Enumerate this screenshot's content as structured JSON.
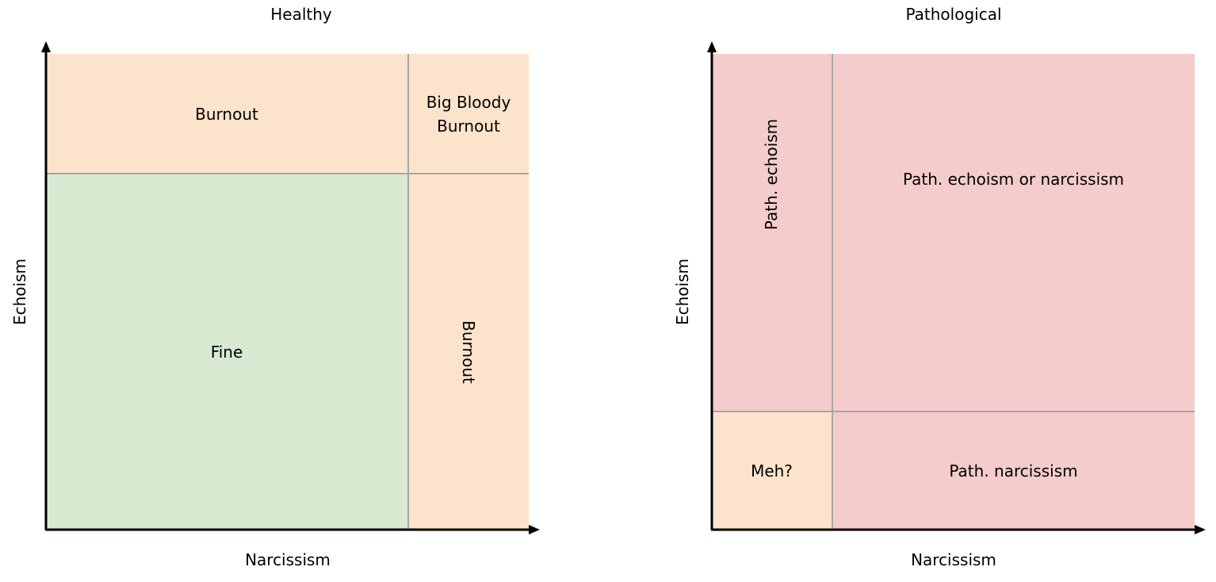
{
  "left_panel": {
    "title": "Healthy",
    "xlabel": "Narcissism",
    "ylabel": "Echoism",
    "cells": {
      "top_left": "Burnout",
      "top_right_line1": "Big Bloody",
      "top_right_line2": "Burnout",
      "bottom_left": "Fine",
      "bottom_right": "Burnout"
    }
  },
  "right_panel": {
    "title": "Pathological",
    "xlabel": "Narcissism",
    "ylabel": "Echoism",
    "cells": {
      "top_left": "Path. echoism",
      "top_right": "Path. echoism or narcissism",
      "bottom_left": "Meh?",
      "bottom_right": "Path. narcissism"
    }
  },
  "colors": {
    "peach": "#fce4cc",
    "green": "#d9ead3",
    "pink": "#f4cccc",
    "divider": "#a6a6a6",
    "axis": "#000000"
  }
}
